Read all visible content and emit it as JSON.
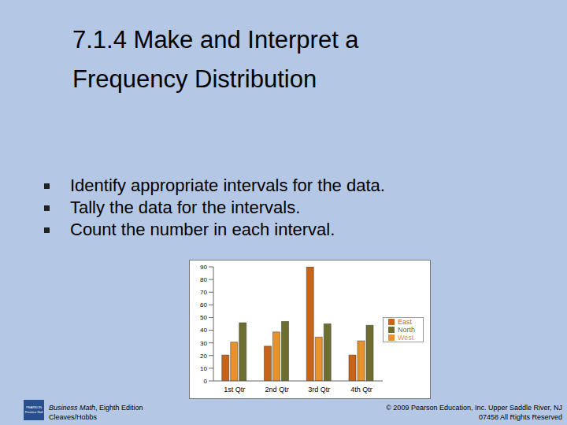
{
  "title_lines": [
    "7.1.4 Make and Interpret a",
    "Frequency Distribution"
  ],
  "bullets": [
    "Identify appropriate intervals for the data.",
    "Tally the data for the intervals.",
    "Count the number in each interval."
  ],
  "footer": {
    "logo": [
      "PEARSON",
      "Prentice Hall"
    ],
    "book": "Business Math",
    "edition": ", Eighth Edition",
    "authors": "Cleaves/Hobbs",
    "copyright": [
      "© 2009 Pearson Education, Inc. Upper Saddle River, NJ",
      "07458  All Rights Reserved"
    ]
  },
  "chart_data": {
    "type": "bar",
    "categories": [
      "1st Qtr",
      "2nd Qtr",
      "3rd Qtr",
      "4th Qtr"
    ],
    "series": [
      {
        "name": "East",
        "color": "#C8641A",
        "values": [
          20.4,
          27.4,
          90,
          20.4
        ]
      },
      {
        "name": "West",
        "color": "#E8922E",
        "values": [
          30.6,
          38.6,
          34.6,
          31.6
        ]
      },
      {
        "name": "North",
        "color": "#6E6E30",
        "values": [
          45.9,
          46.9,
          45,
          43.9
        ]
      }
    ],
    "ylim": [
      0,
      90
    ],
    "yticks": [
      0,
      10,
      20,
      30,
      40,
      50,
      60,
      70,
      80,
      90
    ],
    "grid": false,
    "legend": "right"
  }
}
